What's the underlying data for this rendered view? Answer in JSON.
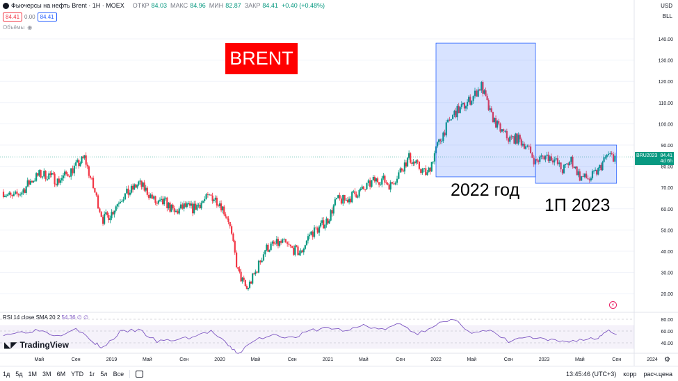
{
  "header": {
    "title": "Фьючерсы на нефть Brent · 1Н · MOEX",
    "ohlc": [
      {
        "k": "ОТКР",
        "v": "84.03"
      },
      {
        "k": "МАКС",
        "v": "84.96"
      },
      {
        "k": "МИН",
        "v": "82.87"
      },
      {
        "k": "ЗАКР",
        "v": "84.41"
      }
    ],
    "change": "+0.40 (+0.48%)",
    "sell": "84.41",
    "spread": "0.00",
    "buy": "84.41",
    "volume_label": "Объёмы"
  },
  "top_right": {
    "currency": "USD",
    "unit": "BLL"
  },
  "annotations": {
    "brent": "BRENT",
    "y2022": "2022 год",
    "h1_2023": "1П 2023"
  },
  "price_tag": {
    "symbol": "BRU2023",
    "value": "84.41",
    "time": "4d 6h"
  },
  "rsi": {
    "label": "RSI 14 close SMA 20 2",
    "value": "54.36",
    "extra": "∅ ∅"
  },
  "logo": "TradingView",
  "toolbar": {
    "timeframes": [
      "1д",
      "5д",
      "1М",
      "3М",
      "6М",
      "YTD",
      "1г",
      "5л",
      "Все"
    ],
    "time": "13:45:46 (UTC+3)",
    "corr": "корр",
    "calc": "расч.цена"
  },
  "colors": {
    "up": "#089981",
    "down": "#f23645",
    "rsi": "#7e57c2",
    "box": "#2962ff"
  },
  "chart_data": {
    "type": "candlestick",
    "y_ticks": [
      140,
      130,
      120,
      110,
      100,
      90,
      80,
      70,
      60,
      50,
      40,
      30,
      20
    ],
    "y_tick_labels": [
      "140.00",
      "130.00",
      "120.00",
      "110.00",
      "100.00",
      "90.00",
      "80.00",
      "70.00",
      "60.00",
      "50.00",
      "40.00",
      "30.00",
      "20.00"
    ],
    "last_price": 84.41,
    "x_labels": [
      "Май",
      "Сен",
      "2019",
      "Май",
      "Сен",
      "2020",
      "Май",
      "Сен",
      "2021",
      "Май",
      "Сен",
      "2022",
      "Май",
      "Сен",
      "2023",
      "Май",
      "Сен",
      "2024"
    ],
    "x_label_dates": [
      2018.33,
      2018.67,
      2019.0,
      2019.33,
      2019.67,
      2020.0,
      2020.33,
      2020.67,
      2021.0,
      2021.33,
      2021.67,
      2022.0,
      2022.33,
      2022.67,
      2023.0,
      2023.33,
      2023.67,
      2024.0
    ],
    "close_series": [
      [
        2018.0,
        68
      ],
      [
        2018.08,
        65
      ],
      [
        2018.17,
        68
      ],
      [
        2018.25,
        73
      ],
      [
        2018.33,
        76
      ],
      [
        2018.42,
        76
      ],
      [
        2018.5,
        73
      ],
      [
        2018.58,
        76
      ],
      [
        2018.67,
        80
      ],
      [
        2018.75,
        84
      ],
      [
        2018.83,
        70
      ],
      [
        2018.92,
        55
      ],
      [
        2019.0,
        58
      ],
      [
        2019.08,
        65
      ],
      [
        2019.17,
        68
      ],
      [
        2019.25,
        72
      ],
      [
        2019.33,
        68
      ],
      [
        2019.42,
        62
      ],
      [
        2019.5,
        63
      ],
      [
        2019.58,
        58
      ],
      [
        2019.67,
        61
      ],
      [
        2019.75,
        60
      ],
      [
        2019.83,
        63
      ],
      [
        2019.92,
        66
      ],
      [
        2020.0,
        63
      ],
      [
        2020.08,
        55
      ],
      [
        2020.17,
        30
      ],
      [
        2020.25,
        22
      ],
      [
        2020.33,
        30
      ],
      [
        2020.42,
        41
      ],
      [
        2020.5,
        43
      ],
      [
        2020.58,
        44
      ],
      [
        2020.67,
        41
      ],
      [
        2020.75,
        39
      ],
      [
        2020.83,
        48
      ],
      [
        2020.92,
        51
      ],
      [
        2021.0,
        55
      ],
      [
        2021.08,
        64
      ],
      [
        2021.17,
        64
      ],
      [
        2021.25,
        67
      ],
      [
        2021.33,
        69
      ],
      [
        2021.42,
        73
      ],
      [
        2021.5,
        74
      ],
      [
        2021.58,
        71
      ],
      [
        2021.67,
        78
      ],
      [
        2021.75,
        84
      ],
      [
        2021.83,
        80
      ],
      [
        2021.92,
        76
      ],
      [
        2022.0,
        88
      ],
      [
        2022.08,
        97
      ],
      [
        2022.17,
        105
      ],
      [
        2022.25,
        108
      ],
      [
        2022.33,
        112
      ],
      [
        2022.42,
        118
      ],
      [
        2022.5,
        105
      ],
      [
        2022.58,
        98
      ],
      [
        2022.67,
        93
      ],
      [
        2022.75,
        93
      ],
      [
        2022.83,
        90
      ],
      [
        2022.92,
        82
      ],
      [
        2023.0,
        85
      ],
      [
        2023.08,
        84
      ],
      [
        2023.17,
        78
      ],
      [
        2023.25,
        83
      ],
      [
        2023.33,
        75
      ],
      [
        2023.42,
        74
      ],
      [
        2023.5,
        78
      ],
      [
        2023.58,
        85
      ],
      [
        2023.67,
        84.41
      ]
    ],
    "boxes": [
      {
        "label": "2022 год",
        "x0": 2022.0,
        "x1": 2022.92,
        "y0": 75,
        "y1": 138
      },
      {
        "label": "1П 2023",
        "x0": 2022.92,
        "x1": 2023.67,
        "y0": 72,
        "y1": 90
      }
    ],
    "rsi_ticks": [
      80,
      60,
      40
    ],
    "rsi_tick_labels": [
      "80.00",
      "60.00",
      "40.00"
    ],
    "rsi_band": [
      30,
      70
    ],
    "rsi_series": [
      [
        2018.0,
        55
      ],
      [
        2018.17,
        58
      ],
      [
        2018.33,
        62
      ],
      [
        2018.5,
        52
      ],
      [
        2018.67,
        66
      ],
      [
        2018.83,
        40
      ],
      [
        2018.92,
        32
      ],
      [
        2019.08,
        58
      ],
      [
        2019.25,
        62
      ],
      [
        2019.42,
        42
      ],
      [
        2019.58,
        45
      ],
      [
        2019.75,
        50
      ],
      [
        2019.92,
        60
      ],
      [
        2020.08,
        35
      ],
      [
        2020.17,
        22
      ],
      [
        2020.33,
        45
      ],
      [
        2020.5,
        55
      ],
      [
        2020.67,
        48
      ],
      [
        2020.83,
        60
      ],
      [
        2021.0,
        66
      ],
      [
        2021.17,
        60
      ],
      [
        2021.33,
        70
      ],
      [
        2021.5,
        62
      ],
      [
        2021.67,
        72
      ],
      [
        2021.83,
        55
      ],
      [
        2022.0,
        72
      ],
      [
        2022.17,
        78
      ],
      [
        2022.33,
        58
      ],
      [
        2022.5,
        60
      ],
      [
        2022.67,
        42
      ],
      [
        2022.83,
        50
      ],
      [
        2023.0,
        45
      ],
      [
        2023.17,
        42
      ],
      [
        2023.33,
        45
      ],
      [
        2023.5,
        48
      ],
      [
        2023.58,
        62
      ],
      [
        2023.67,
        54.36
      ]
    ]
  }
}
